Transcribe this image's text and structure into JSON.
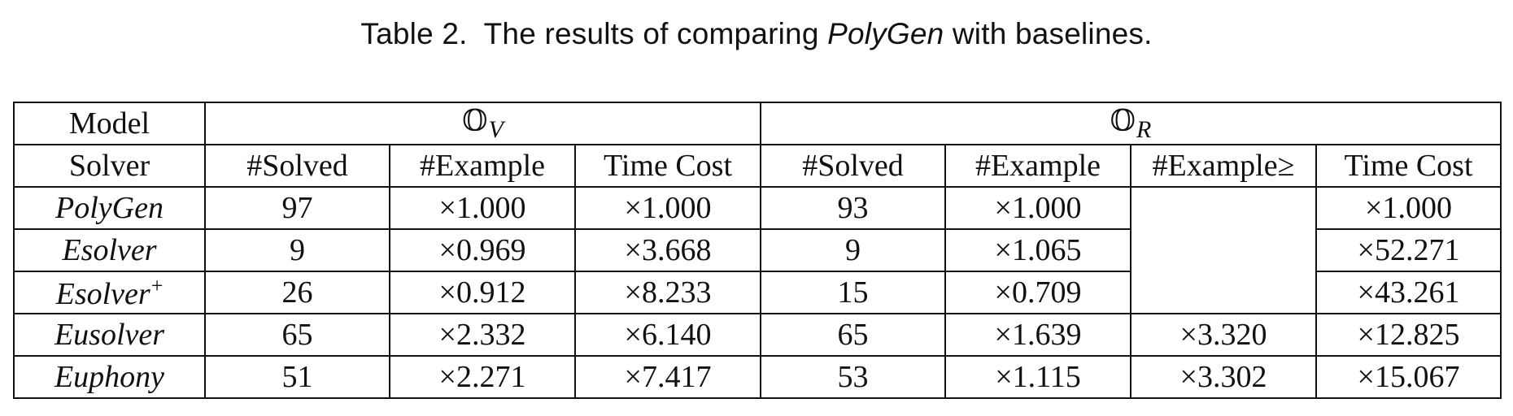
{
  "caption": {
    "label": "Table 2.",
    "text_before": "The results of comparing",
    "name": "PolyGen",
    "text_after": "with baselines."
  },
  "table": {
    "header_top": {
      "model": "Model",
      "group_v": {
        "symbol": "𝕆",
        "sub": "V"
      },
      "group_r": {
        "symbol": "𝕆",
        "sub": "R"
      }
    },
    "header_sub": {
      "solver": "Solver",
      "v": [
        "#Solved",
        "#Example",
        "Time Cost"
      ],
      "r": [
        "#Solved",
        "#Example",
        "#Example≥",
        "Time Cost"
      ]
    },
    "rows": [
      {
        "solver": "PolyGen",
        "sup": "",
        "v_solved": "97",
        "v_example": "×1.000",
        "v_time": "×1.000",
        "r_solved": "93",
        "r_example": "×1.000",
        "r_example_ge": "",
        "r_time": "×1.000"
      },
      {
        "solver": "Esolver",
        "sup": "",
        "v_solved": "9",
        "v_example": "×0.969",
        "v_time": "×3.668",
        "r_solved": "9",
        "r_example": "×1.065",
        "r_example_ge": "",
        "r_time": "×52.271"
      },
      {
        "solver": "Esolver",
        "sup": "+",
        "v_solved": "26",
        "v_example": "×0.912",
        "v_time": "×8.233",
        "r_solved": "15",
        "r_example": "×0.709",
        "r_example_ge": "",
        "r_time": "×43.261"
      },
      {
        "solver": "Eusolver",
        "sup": "",
        "v_solved": "65",
        "v_example": "×2.332",
        "v_time": "×6.140",
        "r_solved": "65",
        "r_example": "×1.639",
        "r_example_ge": "×3.320",
        "r_time": "×12.825"
      },
      {
        "solver": "Euphony",
        "sup": "",
        "v_solved": "51",
        "v_example": "×2.271",
        "v_time": "×7.417",
        "r_solved": "53",
        "r_example": "×1.115",
        "r_example_ge": "×3.302",
        "r_time": "×15.067"
      }
    ]
  }
}
